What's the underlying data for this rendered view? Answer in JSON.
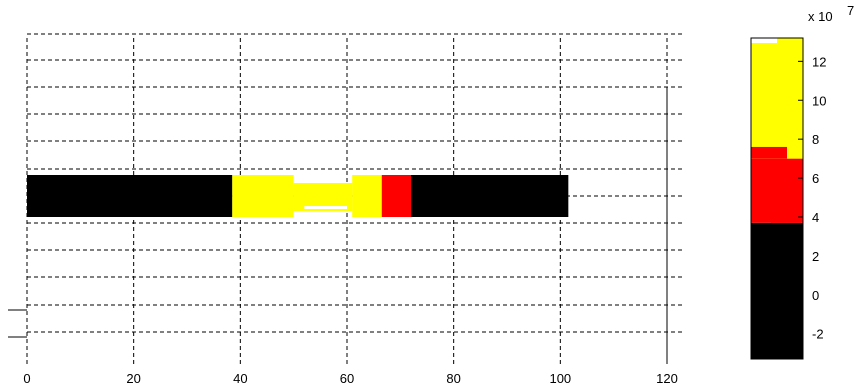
{
  "chart_data": {
    "type": "heatmap",
    "title": "",
    "xlabel": "",
    "ylabel": "",
    "xlim": [
      0,
      120
    ],
    "x_ticks": [
      "0",
      "20",
      "40",
      "60",
      "80",
      "100",
      "120"
    ],
    "grid": true,
    "bar": {
      "y_extent_fraction": [
        0.49,
        0.63
      ],
      "segments": [
        {
          "x0": 0,
          "x1": 38.5,
          "color": "#000000"
        },
        {
          "x0": 38.5,
          "x1": 50,
          "color": "#ffff00"
        },
        {
          "x0": 50,
          "x1": 61,
          "color": "#ffff00",
          "note": "narrow"
        },
        {
          "x0": 61,
          "x1": 66.5,
          "color": "#ffff00"
        },
        {
          "x0": 66.5,
          "x1": 72,
          "color": "#ff0000"
        },
        {
          "x0": 72,
          "x1": 101.5,
          "color": "#000000"
        }
      ]
    },
    "colorbar": {
      "multiplier_label": "x 10",
      "multiplier_exponent": "7",
      "range": [
        -3.3,
        13.2
      ],
      "ticks": [
        "-2",
        "0",
        "2",
        "4",
        "6",
        "8",
        "10",
        "12"
      ],
      "bands": [
        {
          "from": -3.3,
          "to": 3.7,
          "color": "#000000"
        },
        {
          "from": 3.7,
          "to": 7.0,
          "color": "#ff0000"
        },
        {
          "from": 7.0,
          "to": 13.2,
          "color": "#ffff00"
        }
      ]
    }
  }
}
